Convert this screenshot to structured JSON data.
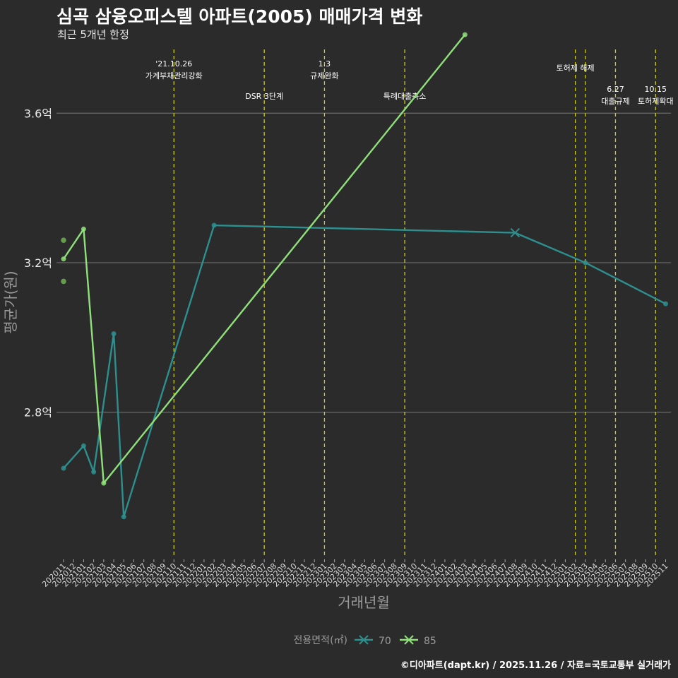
{
  "title": "심곡 삼융오피스텔 아파트(2005) 매매가격 변화",
  "subtitle": "최근 5개년 한정",
  "caption": "©디아파트(dapt.kr) / 2025.11.26 / 자료=국토교통부 실거래가",
  "chart_data": {
    "type": "line",
    "xlabel": "거래년월",
    "ylabel": "평균가(원)",
    "ylim": [
      2.41,
      3.78
    ],
    "yticks": [
      {
        "value": 2.8,
        "label": "2.8억"
      },
      {
        "value": 3.2,
        "label": "3.2억"
      },
      {
        "value": 3.6,
        "label": "3.6억"
      }
    ],
    "x_categories": [
      "202011",
      "202012",
      "202101",
      "202102",
      "202103",
      "202104",
      "202105",
      "202106",
      "202107",
      "202108",
      "202109",
      "202110",
      "202111",
      "202112",
      "202201",
      "202202",
      "202203",
      "202204",
      "202205",
      "202206",
      "202207",
      "202208",
      "202209",
      "202210",
      "202211",
      "202212",
      "202301",
      "202302",
      "202303",
      "202304",
      "202305",
      "202306",
      "202307",
      "202308",
      "202309",
      "202310",
      "202311",
      "202312",
      "202401",
      "202402",
      "202403",
      "202404",
      "202405",
      "202406",
      "202407",
      "202408",
      "202409",
      "202410",
      "202411",
      "202412",
      "202501",
      "202502",
      "202503",
      "202504",
      "202505",
      "202506",
      "202507",
      "202508",
      "202509",
      "202510",
      "202511"
    ],
    "legend_title": "전용면적(㎡)",
    "series": [
      {
        "name": "70",
        "color": "#2e8f8f",
        "points": [
          {
            "x": "202011",
            "y": 2.65
          },
          {
            "x": "202101",
            "y": 2.71
          },
          {
            "x": "202102",
            "y": 2.64
          },
          {
            "x": "202104",
            "y": 3.01
          },
          {
            "x": "202105",
            "y": 2.52
          },
          {
            "x": "202202",
            "y": 3.3
          },
          {
            "x": "202408",
            "y": 3.28,
            "marker": "x"
          },
          {
            "x": "202503",
            "y": 3.2
          },
          {
            "x": "202511",
            "y": 3.09
          }
        ],
        "extra_points": []
      },
      {
        "name": "85",
        "color": "#8fe07a",
        "points": [
          {
            "x": "202011",
            "y": 3.21
          },
          {
            "x": "202101",
            "y": 3.29
          },
          {
            "x": "202103",
            "y": 2.61
          },
          {
            "x": "202403",
            "y": 3.81
          }
        ],
        "extra_points": [
          {
            "x": "202011",
            "y": 3.26
          },
          {
            "x": "202011",
            "y": 3.15
          }
        ]
      }
    ],
    "events": [
      {
        "x": "202110",
        "label_line1": "'21.10.26",
        "label_line2": "가계부채관리강화",
        "tier": 1
      },
      {
        "x": "202207",
        "label_line1": "",
        "label_line2": "DSR 3단계",
        "tier": 2
      },
      {
        "x": "202301",
        "label_line1": "1.3",
        "label_line2": "규제완화",
        "tier": 1
      },
      {
        "x": "202309",
        "label_line1": "",
        "label_line2": "특례대출축소",
        "tier": 2
      },
      {
        "x": "202502",
        "label_line1": "",
        "label_line2": "토허제 해제",
        "tier": 1.5
      },
      {
        "x": "202503",
        "label_line1": "",
        "label_line2": "",
        "tier": 1
      },
      {
        "x": "202506",
        "label_line1": "6.27",
        "label_line2": "대출규제",
        "tier": 2
      },
      {
        "x": "202510",
        "label_line1": "10.15",
        "label_line2": "토허제확대",
        "tier": 2
      }
    ]
  }
}
